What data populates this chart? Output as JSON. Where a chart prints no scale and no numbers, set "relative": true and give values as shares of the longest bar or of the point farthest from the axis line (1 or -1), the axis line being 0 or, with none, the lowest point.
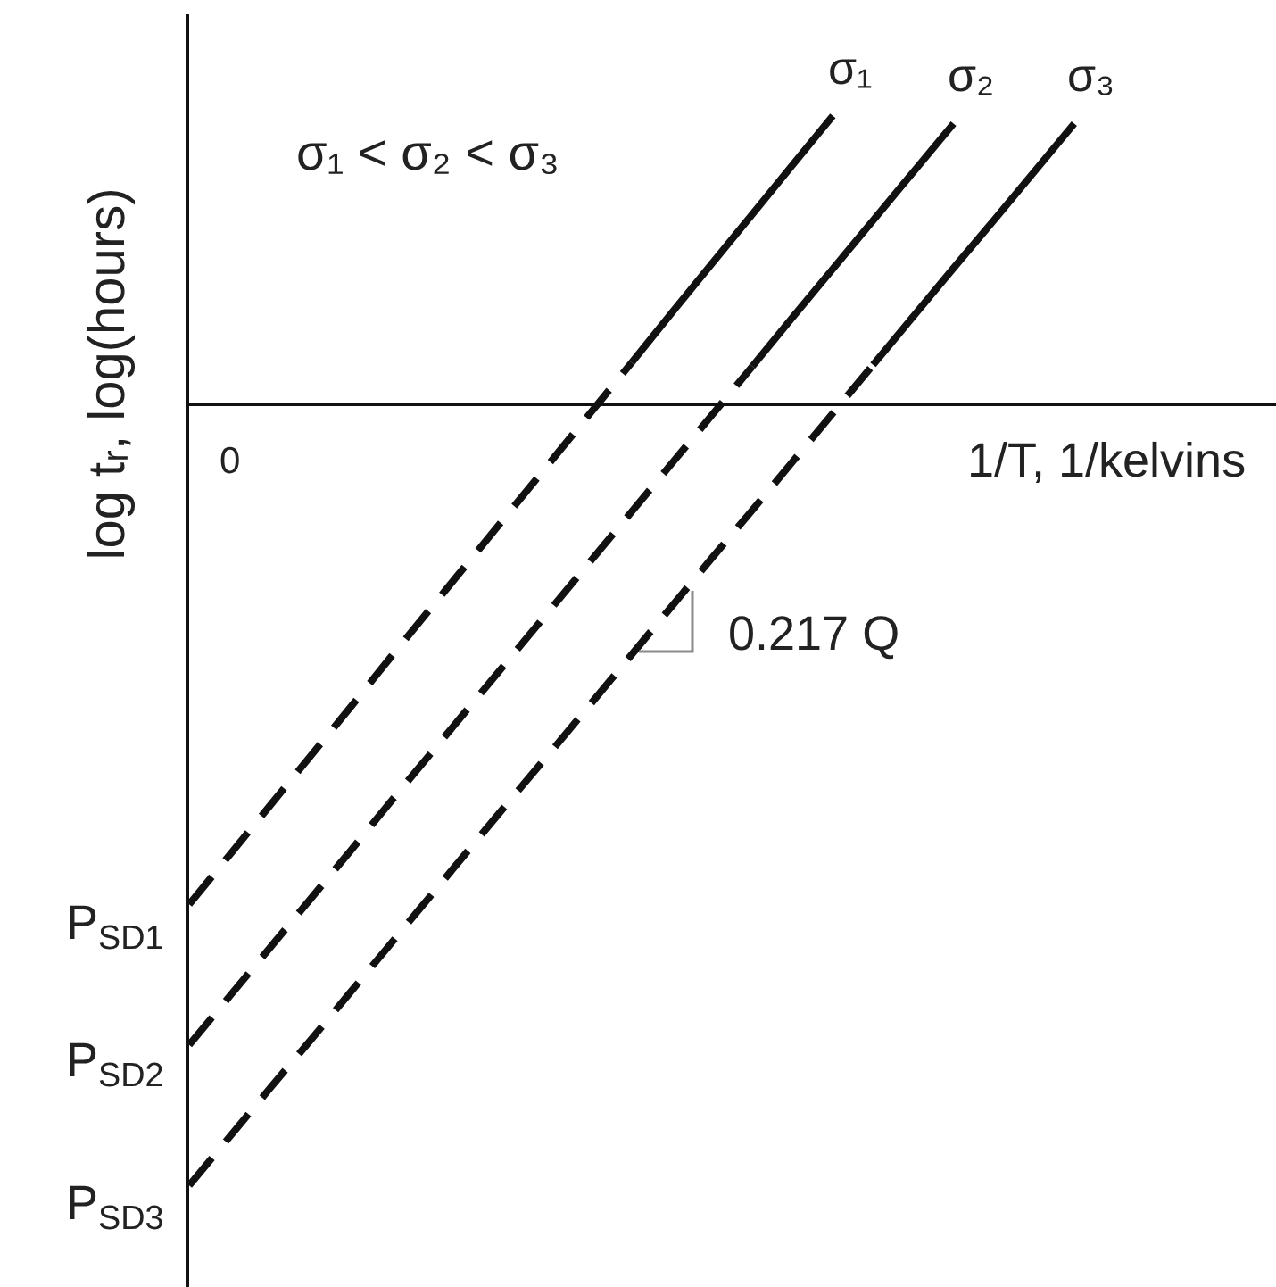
{
  "chart_data": {
    "type": "line",
    "relative": true,
    "xlabel": "1/T, 1/kelvins",
    "ylabel": "log tᵣ, log(hours)",
    "legend": false,
    "grid": false,
    "marker": "none",
    "categories": [
      null,
      null,
      null,
      null,
      null,
      null,
      null,
      null,
      null,
      null,
      null,
      null,
      null,
      null,
      null,
      null,
      null,
      null,
      null,
      null,
      null,
      null,
      null
    ],
    "series": [
      {
        "color": "#111111",
        "line_style": "dashed",
        "values": [
          -0.64,
          -0.577,
          -0.514,
          -0.451,
          -0.388,
          -0.324,
          -0.261,
          -0.198,
          -0.135,
          -0.072,
          -0.009,
          0.054,
          null,
          null,
          null,
          null,
          null,
          null,
          null,
          null,
          null,
          null,
          null
        ]
      },
      {
        "name": "σ₁",
        "color": "#111111",
        "line_style": "solid",
        "values": [
          null,
          null,
          null,
          null,
          null,
          null,
          null,
          null,
          null,
          null,
          null,
          0.054,
          0.118,
          0.181,
          0.244,
          0.307,
          0.37,
          null,
          null,
          null,
          null,
          null,
          null
        ]
      },
      {
        "color": "#111111",
        "line_style": "dashed",
        "values": [
          -0.82,
          -0.758,
          -0.696,
          -0.634,
          -0.572,
          -0.509,
          -0.447,
          -0.385,
          -0.323,
          -0.261,
          -0.199,
          -0.137,
          -0.075,
          -0.013,
          0.049,
          null,
          null,
          null,
          null,
          null,
          null,
          null,
          null
        ]
      },
      {
        "name": "σ₂",
        "color": "#111111",
        "line_style": "solid",
        "values": [
          null,
          null,
          null,
          null,
          null,
          null,
          null,
          null,
          null,
          null,
          null,
          null,
          null,
          null,
          0.049,
          0.112,
          0.174,
          0.236,
          0.298,
          0.36,
          null,
          null,
          null
        ]
      },
      {
        "color": "#111111",
        "line_style": "dashed",
        "values": [
          -1,
          -0.938,
          -0.876,
          -0.815,
          -0.753,
          -0.691,
          -0.629,
          -0.567,
          -0.505,
          -0.444,
          -0.382,
          -0.32,
          -0.258,
          -0.196,
          -0.135,
          -0.073,
          -0.011,
          0.051,
          null,
          null,
          null,
          null,
          null
        ]
      },
      {
        "name": "σ₃",
        "color": "#111111",
        "line_style": "solid",
        "values": [
          null,
          null,
          null,
          null,
          null,
          null,
          null,
          null,
          null,
          null,
          null,
          null,
          null,
          null,
          null,
          null,
          null,
          0.051,
          0.113,
          0.175,
          0.236,
          0.298,
          0.36
        ]
      }
    ],
    "annotations": [
      "σ₁ < σ₂ < σ₃",
      "0.217 Q",
      "0",
      "P$_{SD1}$",
      "P$_{SD2}$",
      "P$_{SD3}$"
    ]
  }
}
